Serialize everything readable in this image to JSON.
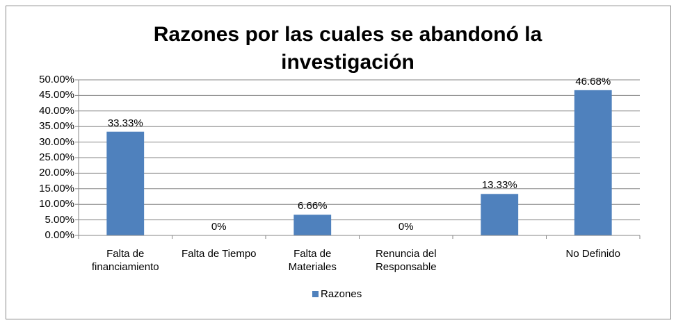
{
  "chart_data": {
    "type": "bar",
    "title": "Razones por las cuales se abandonó la investigación",
    "categories": [
      "Falta de financiamiento",
      "Falta de Tiempo",
      "Falta de Materiales",
      "Renuncia del Responsable",
      null,
      "No Definido"
    ],
    "series": [
      {
        "name": "Razones",
        "color": "#4f81bd",
        "values": [
          33.33,
          0,
          6.66,
          0,
          13.33,
          46.68
        ],
        "value_labels": [
          "33.33%",
          "0%",
          "6.66%",
          "0%",
          "13.33%",
          "46.68%"
        ]
      }
    ],
    "ylim": [
      0,
      50
    ],
    "yticks": [
      {
        "value": 0,
        "label": "0.00%"
      },
      {
        "value": 5,
        "label": "5.00%"
      },
      {
        "value": 10,
        "label": "10.00%"
      },
      {
        "value": 15,
        "label": "15.00%"
      },
      {
        "value": 20,
        "label": "20.00%"
      },
      {
        "value": 25,
        "label": "25.00%"
      },
      {
        "value": 30,
        "label": "30.00%"
      },
      {
        "value": 35,
        "label": "35.00%"
      },
      {
        "value": 40,
        "label": "40.00%"
      },
      {
        "value": 45,
        "label": "45.00%"
      },
      {
        "value": 50,
        "label": "50.00%"
      }
    ],
    "grid": true,
    "legend": "bottom"
  }
}
